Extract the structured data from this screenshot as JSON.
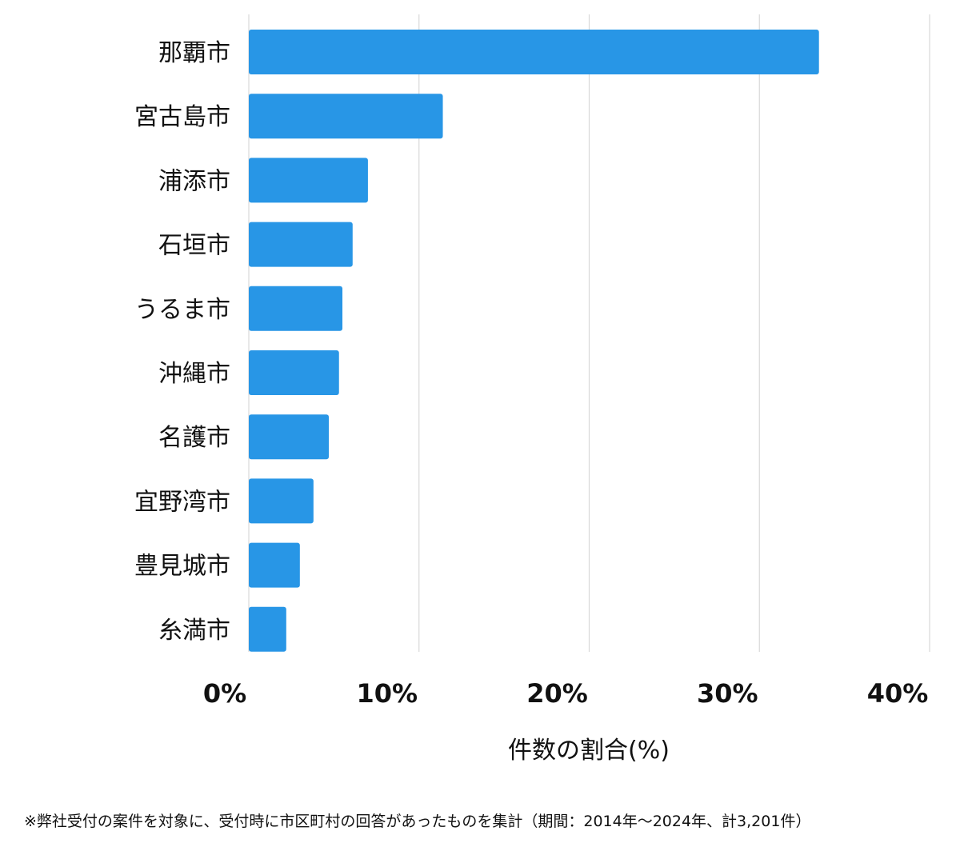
{
  "chart_data": {
    "type": "bar",
    "orientation": "horizontal",
    "categories": [
      "那覇市",
      "宮古島市",
      "浦添市",
      "石垣市",
      "うるま市",
      "沖縄市",
      "名護市",
      "宜野湾市",
      "豊見城市",
      "糸満市"
    ],
    "values": [
      33.5,
      11.4,
      7.0,
      6.1,
      5.5,
      5.3,
      4.7,
      3.8,
      3.0,
      2.2
    ],
    "xlim": [
      0,
      40
    ],
    "xticks": [
      0,
      10,
      20,
      30,
      40
    ],
    "xtick_labels": [
      "0%",
      "10%",
      "20%",
      "30%",
      "40%"
    ],
    "xlabel": "件数の割合(%)",
    "ylabel": "",
    "title": "",
    "grid": true,
    "bar_color": "#2896e6",
    "grid_color": "#d9d9d9"
  },
  "footnote": "※弊社受付の案件を対象に、受付時に市区町村の回答があったものを集計（期間：2014年～2024年、計3,201件）"
}
